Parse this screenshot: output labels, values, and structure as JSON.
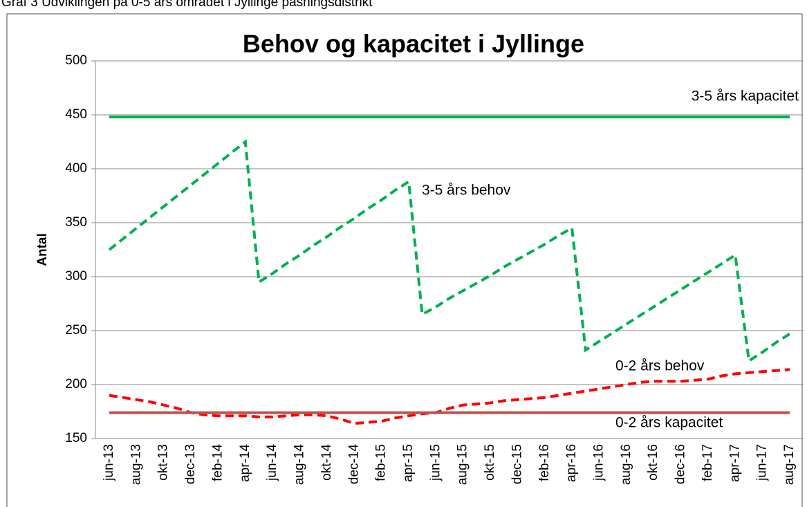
{
  "caption": "Graf 3 Udviklingen på 0-5 års området i Jyllinge pasningsdistrikt",
  "chart_data": {
    "type": "line",
    "title": "Behov og kapacitet i Jyllinge",
    "y_label": "Antal",
    "categories": [
      "jun-13",
      null,
      "aug-13",
      null,
      "okt-13",
      null,
      "dec-13",
      null,
      "feb-14",
      null,
      "apr-14",
      null,
      "jun-14",
      null,
      "aug-14",
      null,
      "okt-14",
      null,
      "dec-14",
      null,
      "feb-15",
      null,
      "apr-15",
      null,
      "jun-15",
      null,
      "aug-15",
      null,
      "okt-15",
      null,
      "dec-15",
      null,
      "feb-16",
      null,
      "apr-16",
      null,
      "jun-16",
      null,
      "aug-16",
      null,
      "okt-16",
      null,
      "dec-16",
      null,
      "feb-17",
      null,
      "apr-17",
      null,
      "jun-17",
      null,
      "aug-17"
    ],
    "series": [
      {
        "name": "3-5 års kapacitet",
        "color": "#00b050",
        "dashed": false,
        "values": [
          448,
          448,
          448,
          448,
          448,
          448,
          448,
          448,
          448,
          448,
          448,
          448,
          448,
          448,
          448,
          448,
          448,
          448,
          448,
          448,
          448,
          448,
          448,
          448,
          448,
          448,
          448,
          448,
          448,
          448,
          448,
          448,
          448,
          448,
          448,
          448,
          448,
          448,
          448,
          448,
          448,
          448,
          448,
          448,
          448,
          448,
          448,
          448,
          448,
          448,
          448
        ]
      },
      {
        "name": "3-5 års behov",
        "color": "#00b050",
        "dashed": true,
        "values": [
          325,
          335,
          345,
          355,
          365,
          375,
          385,
          395,
          405,
          415,
          425,
          295,
          303,
          312,
          320,
          329,
          337,
          346,
          354,
          363,
          371,
          380,
          388,
          265,
          272,
          280,
          287,
          294,
          301,
          309,
          316,
          323,
          330,
          338,
          345,
          232,
          240,
          248,
          256,
          264,
          272,
          280,
          288,
          296,
          304,
          312,
          320,
          222,
          230,
          239,
          247
        ]
      },
      {
        "name": "0-2 års behov",
        "color": "#ff0000",
        "dashed": true,
        "values": [
          190,
          188,
          186,
          184,
          181,
          178,
          174,
          172,
          171,
          171,
          171,
          170,
          170,
          171,
          172,
          172,
          171,
          168,
          164,
          165,
          166,
          169,
          171,
          173,
          174,
          178,
          181,
          182,
          183,
          185,
          186,
          187,
          188,
          190,
          192,
          194,
          196,
          198,
          200,
          202,
          203,
          203,
          203,
          204,
          205,
          208,
          210,
          211,
          212,
          213,
          214
        ]
      },
      {
        "name": "0-2 års kapacitet",
        "color": "#c0504d",
        "dashed": false,
        "values": [
          174,
          174,
          174,
          174,
          174,
          174,
          174,
          174,
          174,
          174,
          174,
          174,
          174,
          174,
          174,
          174,
          174,
          174,
          174,
          174,
          174,
          174,
          174,
          174,
          174,
          174,
          174,
          174,
          174,
          174,
          174,
          174,
          174,
          174,
          174,
          174,
          174,
          174,
          174,
          174,
          174,
          174,
          174,
          174,
          174,
          174,
          174,
          174,
          174,
          174,
          174
        ]
      }
    ],
    "ylim": [
      150,
      500
    ],
    "yticks": [
      150,
      200,
      250,
      300,
      350,
      400,
      450,
      500
    ],
    "grid": true
  }
}
